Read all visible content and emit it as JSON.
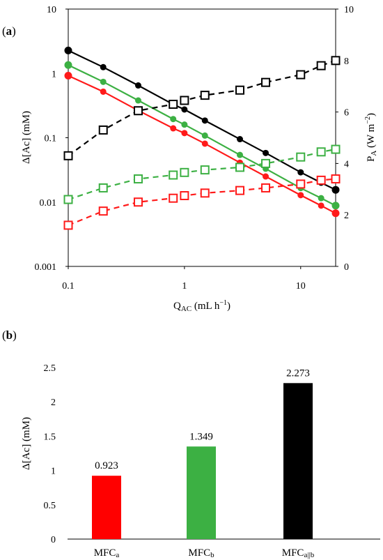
{
  "chart_data": [
    {
      "type": "line",
      "panel_label_open": "(",
      "panel_label_letter": "a",
      "panel_label_close": ")",
      "xlabel_main": "Q",
      "xlabel_sub": "AC",
      "xlabel_unit_pre": " (mL h",
      "xlabel_unit_sup": "−1",
      "xlabel_unit_post": ")",
      "ylabel": "Δ[Ac] (mM)",
      "y2label_main": "P",
      "y2label_sub": "A",
      "y2label_unit_pre": " (W m",
      "y2label_unit_sup": "−2",
      "y2label_unit_post": ")",
      "xscale": "log",
      "yscale": "log",
      "xlim": [
        0.1,
        20
      ],
      "ylim": [
        0.001,
        10
      ],
      "y2lim": [
        0,
        10
      ],
      "x_ticks": [
        "0.1",
        "1",
        "10"
      ],
      "y_ticks": [
        "0.001",
        "0.01",
        "0.1",
        "1",
        "10"
      ],
      "y2_ticks": [
        "0",
        "2",
        "4",
        "6",
        "8",
        "10"
      ],
      "grid": false,
      "legend": "none",
      "series": [
        {
          "axis": "left",
          "color": "#000000",
          "style": "solid",
          "marker": "filled-circle",
          "x": [
            0.1,
            0.2,
            0.4,
            0.8,
            1,
            1.5,
            3,
            5,
            10,
            15,
            20
          ],
          "y": [
            2.273,
            1.25,
            0.65,
            0.33,
            0.275,
            0.185,
            0.095,
            0.058,
            0.029,
            0.02,
            0.0155
          ]
        },
        {
          "axis": "left",
          "color": "#3cb043",
          "style": "solid",
          "marker": "filled-circle",
          "x": [
            0.1,
            0.2,
            0.4,
            0.8,
            1,
            1.5,
            3,
            5,
            10,
            15,
            20
          ],
          "y": [
            1.349,
            0.74,
            0.38,
            0.195,
            0.16,
            0.108,
            0.054,
            0.033,
            0.0165,
            0.0115,
            0.0088
          ]
        },
        {
          "axis": "left",
          "color": "#ff1a1a",
          "style": "solid",
          "marker": "filled-circle",
          "x": [
            0.1,
            0.2,
            0.4,
            0.8,
            1,
            1.5,
            3,
            5,
            10,
            15,
            20
          ],
          "y": [
            0.923,
            0.52,
            0.265,
            0.14,
            0.118,
            0.081,
            0.041,
            0.025,
            0.0128,
            0.0088,
            0.0067
          ]
        },
        {
          "axis": "right",
          "color": "#000000",
          "style": "dashed",
          "marker": "open-square",
          "x": [
            0.1,
            0.2,
            0.4,
            0.8,
            1,
            1.5,
            3,
            5,
            10,
            15,
            20
          ],
          "y": [
            4.3,
            5.3,
            6.05,
            6.3,
            6.45,
            6.65,
            6.85,
            7.15,
            7.45,
            7.8,
            8.0
          ]
        },
        {
          "axis": "right",
          "color": "#3cb043",
          "style": "dashed",
          "marker": "open-square",
          "x": [
            0.1,
            0.2,
            0.4,
            0.8,
            1,
            1.5,
            3,
            5,
            10,
            15,
            20
          ],
          "y": [
            2.6,
            3.05,
            3.4,
            3.55,
            3.65,
            3.75,
            3.85,
            4.0,
            4.25,
            4.45,
            4.55
          ]
        },
        {
          "axis": "right",
          "color": "#ff1a1a",
          "style": "dashed",
          "marker": "open-square",
          "x": [
            0.1,
            0.2,
            0.4,
            0.8,
            1,
            1.5,
            3,
            5,
            10,
            15,
            20
          ],
          "y": [
            1.6,
            2.15,
            2.5,
            2.65,
            2.75,
            2.85,
            2.95,
            3.05,
            3.2,
            3.35,
            3.4
          ]
        }
      ]
    },
    {
      "type": "bar",
      "panel_label_open": "(",
      "panel_label_letter": "b",
      "panel_label_close": ")",
      "ylabel": "Δ[Ac] (mM)",
      "ylim": [
        0,
        2.5
      ],
      "y_ticks": [
        "0",
        "0.5",
        "1",
        "1.5",
        "2",
        "2.5"
      ],
      "grid": false,
      "categories": [
        {
          "main": "MFC",
          "sub": "a"
        },
        {
          "main": "MFC",
          "sub": "b"
        },
        {
          "main": "MFC",
          "sub": "a||b"
        }
      ],
      "values": [
        0.923,
        1.349,
        2.273
      ],
      "labels": [
        "0.923",
        "1.349",
        "2.273"
      ],
      "colors": [
        "#ff0000",
        "#3cb043",
        "#000000"
      ]
    }
  ]
}
